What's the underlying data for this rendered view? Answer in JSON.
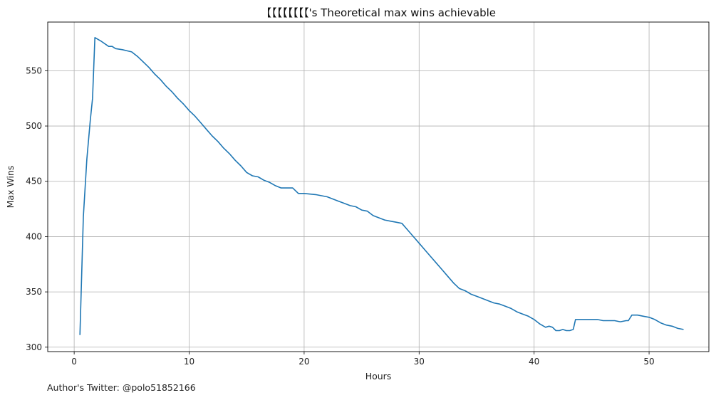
{
  "chart_data": {
    "type": "line",
    "title": "【【【【【【【【's Theoretical max wins achievable",
    "xlabel": "Hours",
    "ylabel": "Max Wins",
    "xlim": [
      -2.3,
      55.2
    ],
    "ylim": [
      296,
      594
    ],
    "xticks": [
      0,
      10,
      20,
      30,
      40,
      50
    ],
    "yticks": [
      300,
      350,
      400,
      450,
      500,
      550
    ],
    "grid": true,
    "series": [
      {
        "color": "#1f77b4",
        "x": [
          0.5,
          0.8,
          1.1,
          1.4,
          1.6,
          1.8,
          2.3,
          3.0,
          3.3,
          3.6,
          4.2,
          4.6,
          5.0,
          5.5,
          6.0,
          6.5,
          7.0,
          7.5,
          8.0,
          8.5,
          9.0,
          9.5,
          10.0,
          10.5,
          11.0,
          11.5,
          12.0,
          12.5,
          13.0,
          13.5,
          14.0,
          14.5,
          15.0,
          15.5,
          16.0,
          16.5,
          17.0,
          17.5,
          18.0,
          19.0,
          19.5,
          20.0,
          21.0,
          22.0,
          23.0,
          23.5,
          24.0,
          24.5,
          25.0,
          25.5,
          26.0,
          26.5,
          27.0,
          27.5,
          28.0,
          28.5,
          29.0,
          29.5,
          30.0,
          30.5,
          31.0,
          31.5,
          32.0,
          32.5,
          33.0,
          33.5,
          34.0,
          34.5,
          35.0,
          35.5,
          36.0,
          36.5,
          37.0,
          37.5,
          38.0,
          38.5,
          39.0,
          39.5,
          40.0,
          40.5,
          41.0,
          41.3,
          41.6,
          41.9,
          42.2,
          42.5,
          42.8,
          43.1,
          43.4,
          43.6,
          44.0,
          44.5,
          45.0,
          45.5,
          46.0,
          46.5,
          47.0,
          47.5,
          48.0,
          48.2,
          48.5,
          49.0,
          49.5,
          50.0,
          50.5,
          51.0,
          51.5,
          52.0,
          52.5,
          53.0
        ],
        "y": [
          311,
          418,
          470,
          505,
          525,
          580,
          577,
          572,
          572,
          570,
          569,
          568,
          567,
          563,
          558,
          553,
          547,
          542,
          536,
          531,
          525,
          520,
          514,
          509,
          503,
          497,
          491,
          486,
          480,
          475,
          469,
          464,
          458,
          455,
          454,
          451,
          449,
          446,
          444,
          444,
          439,
          439,
          438,
          436,
          432,
          430,
          428,
          427,
          424,
          423,
          419,
          417,
          415,
          414,
          413,
          412,
          406,
          400,
          394,
          388,
          382,
          376,
          370,
          364,
          358,
          353,
          351,
          348,
          346,
          344,
          342,
          340,
          339,
          337,
          335,
          332,
          330,
          328,
          325,
          321,
          318,
          319,
          318,
          315,
          315,
          316,
          315,
          315,
          316,
          325,
          325,
          325,
          325,
          325,
          324,
          324,
          324,
          323,
          324,
          324,
          329,
          329,
          328,
          327,
          325,
          322,
          320,
          319,
          317,
          316
        ]
      }
    ]
  },
  "footnote": "Author's Twitter: @polo51852166"
}
